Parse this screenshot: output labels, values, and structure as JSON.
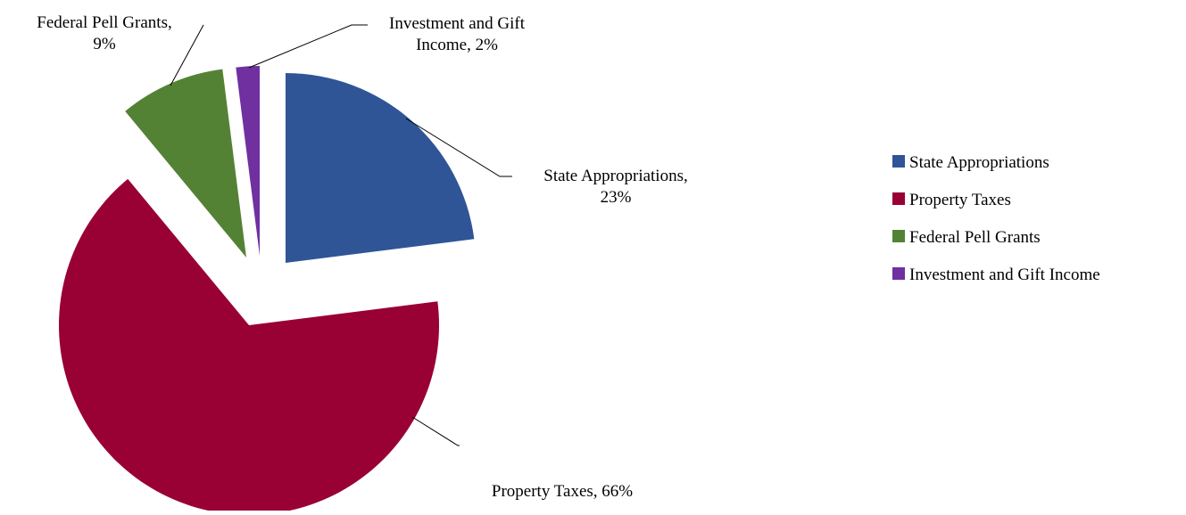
{
  "chart_data": {
    "type": "pie",
    "title": "",
    "start_angle_deg": 0,
    "direction": "clockwise",
    "exploded": true,
    "legend_position": "right",
    "slices": [
      {
        "name": "State Appropriations",
        "value": 23,
        "label_line1": "State Appropriations,",
        "label_line2": "23%",
        "color": "#2F5597"
      },
      {
        "name": "Property Taxes",
        "value": 66,
        "label_line1": "Property Taxes, 66%",
        "label_line2": "",
        "color": "#990033"
      },
      {
        "name": "Federal Pell Grants",
        "value": 9,
        "label_line1": "Federal Pell Grants,",
        "label_line2": "9%",
        "color": "#548235"
      },
      {
        "name": "Investment and Gift Income",
        "value": 2,
        "label_line1": "Investment and Gift",
        "label_line2": "Income, 2%",
        "color": "#7030A0"
      }
    ]
  }
}
